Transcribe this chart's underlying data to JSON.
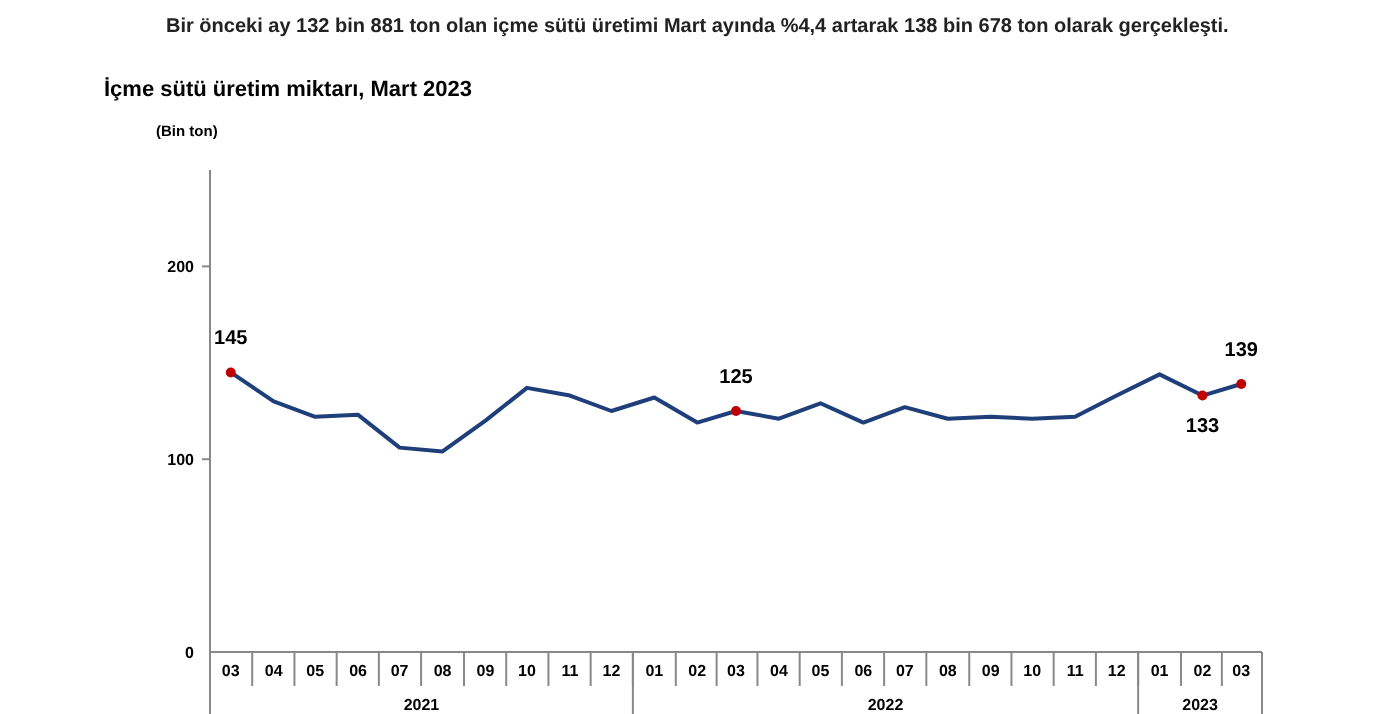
{
  "chart_data": {
    "type": "line",
    "title": "İçme sütü üretim miktarı, Mart 2023",
    "subtitle": "Bir önceki ay 132 bin 881 ton olan içme sütü üretimi Mart ayında %4,4 artarak 138 bin 678 ton olarak gerçekleşti.",
    "ylabel": "(Bin ton)",
    "x": [
      "2021-03",
      "2021-04",
      "2021-05",
      "2021-06",
      "2021-07",
      "2021-08",
      "2021-09",
      "2021-10",
      "2021-11",
      "2021-12",
      "2022-01",
      "2022-02",
      "2022-03",
      "2022-04",
      "2022-05",
      "2022-06",
      "2022-07",
      "2022-08",
      "2022-09",
      "2022-10",
      "2022-11",
      "2022-12",
      "2023-01",
      "2023-02",
      "2023-03"
    ],
    "series": [
      {
        "color": "#1f3f7a",
        "values": [
          145,
          130,
          122,
          123,
          106,
          104,
          120,
          137,
          133,
          125,
          132,
          119,
          125,
          121,
          129,
          119,
          127,
          121,
          122,
          121,
          122,
          133,
          144,
          133,
          139
        ],
        "value_labels": [
          "145",
          null,
          null,
          null,
          null,
          null,
          null,
          null,
          null,
          null,
          null,
          null,
          "125",
          null,
          null,
          null,
          null,
          null,
          null,
          null,
          null,
          null,
          null,
          "133",
          "139"
        ]
      },
      {
        "type": "scatter",
        "x": [
          "2021-03",
          "2022-03",
          "2023-02",
          "2023-03"
        ],
        "values": [
          145,
          125,
          133,
          139
        ],
        "color": "#c00000"
      }
    ],
    "ylim": [
      0,
      250
    ],
    "yticks": [
      0,
      100,
      200
    ],
    "xticks": [
      {
        "value": "2021-03",
        "label": "03"
      },
      {
        "value": "2021-04",
        "label": "04"
      },
      {
        "value": "2021-05",
        "label": "05"
      },
      {
        "value": "2021-06",
        "label": "06"
      },
      {
        "value": "2021-07",
        "label": "07"
      },
      {
        "value": "2021-08",
        "label": "08"
      },
      {
        "value": "2021-09",
        "label": "09"
      },
      {
        "value": "2021-10",
        "label": "10"
      },
      {
        "value": "2021-11",
        "label": "11"
      },
      {
        "value": "2021-12",
        "label": "12"
      },
      {
        "value": "2022-01",
        "label": "01"
      },
      {
        "value": "2022-02",
        "label": "02"
      },
      {
        "value": "2022-03",
        "label": "03"
      },
      {
        "value": "2022-04",
        "label": "04"
      },
      {
        "value": "2022-05",
        "label": "05"
      },
      {
        "value": "2022-06",
        "label": "06"
      },
      {
        "value": "2022-07",
        "label": "07"
      },
      {
        "value": "2022-08",
        "label": "08"
      },
      {
        "value": "2022-09",
        "label": "09"
      },
      {
        "value": "2022-10",
        "label": "10"
      },
      {
        "value": "2022-11",
        "label": "11"
      },
      {
        "value": "2022-12",
        "label": "12"
      },
      {
        "value": "2023-01",
        "label": "01"
      },
      {
        "value": "2023-02",
        "label": "02"
      },
      {
        "value": "2023-03",
        "label": "03"
      }
    ],
    "annotations": [
      "2021",
      "2022",
      "2023"
    ],
    "xlim": [
      "2021-02-14",
      "2023-03-16"
    ],
    "grid": false
  }
}
